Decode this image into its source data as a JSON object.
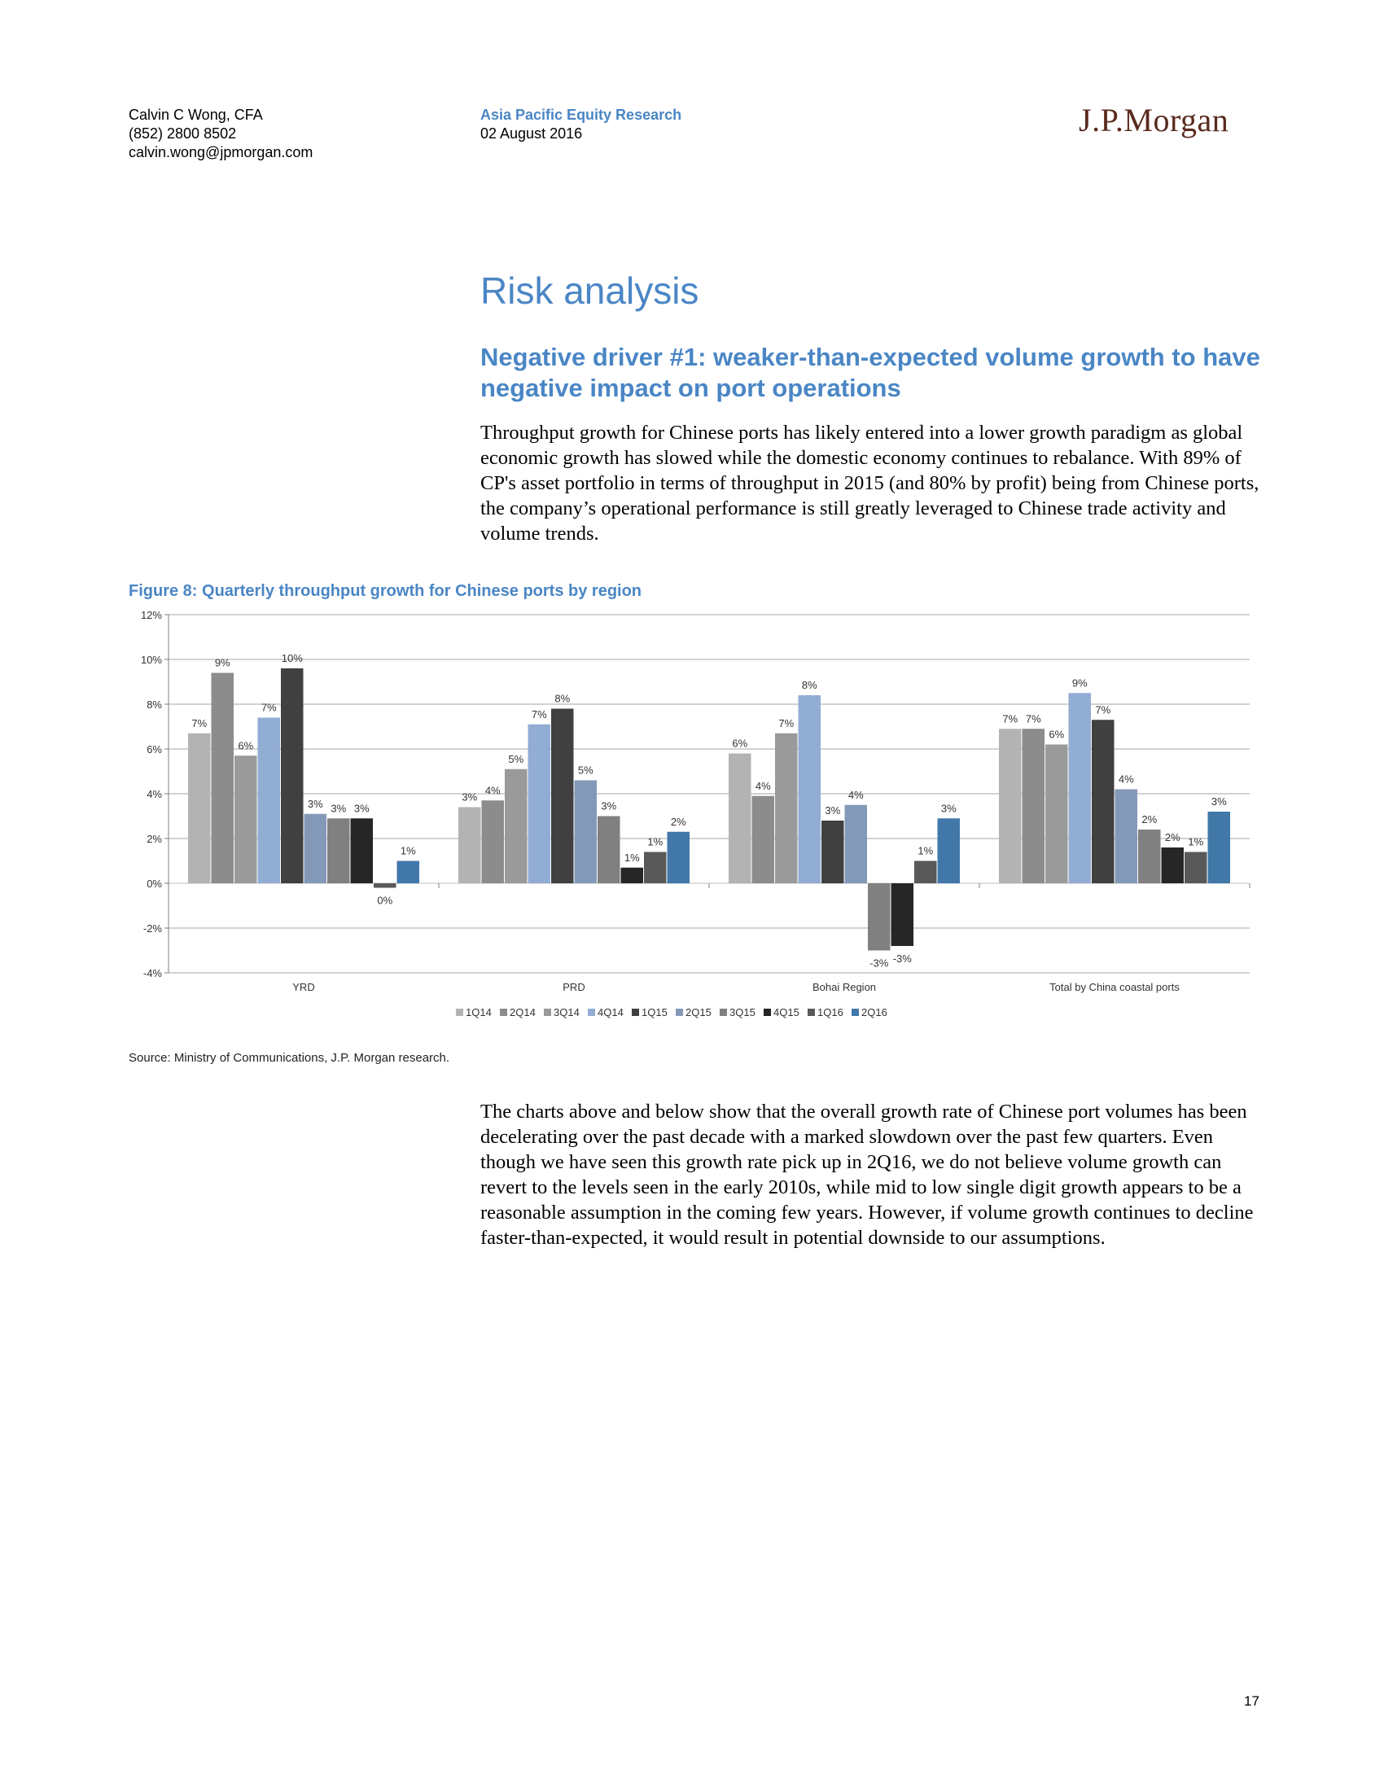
{
  "header": {
    "author_name": "Calvin C Wong, CFA",
    "author_phone": "(852) 2800 8502",
    "author_email": "calvin.wong@jpmorgan.com",
    "publication": "Asia Pacific Equity Research",
    "date": "02 August 2016",
    "logo_text": "J.P.Morgan"
  },
  "section_title": "Risk analysis",
  "subsection_title": "Negative driver #1: weaker-than-expected volume growth to have negative impact on port operations",
  "paragraph_1": "Throughput growth for Chinese ports has likely entered into a lower growth paradigm as global economic growth has slowed while the domestic economy continues to rebalance. With 89% of CP's asset portfolio in terms of throughput in 2015 (and 80% by profit) being from Chinese ports, the company’s operational performance is still greatly leveraged to Chinese trade activity and volume trends.",
  "figure_title": "Figure 8: Quarterly throughput growth for Chinese ports by region",
  "chart_data": {
    "type": "bar",
    "categories": [
      "YRD",
      "PRD",
      "Bohai Region",
      "Total by China coastal ports"
    ],
    "ylim": [
      -4,
      12
    ],
    "yticks": [
      -4,
      -2,
      0,
      2,
      4,
      6,
      8,
      10,
      12
    ],
    "ytick_labels": [
      "-4%",
      "-2%",
      "0%",
      "2%",
      "4%",
      "6%",
      "8%",
      "10%",
      "12%"
    ],
    "grid": true,
    "legend_position": "bottom",
    "series": [
      {
        "name": "1Q14",
        "color": "#b3b3b3",
        "values": [
          6.7,
          3.4,
          5.8,
          6.9
        ],
        "labels": [
          "7%",
          "3%",
          "6%",
          "7%"
        ]
      },
      {
        "name": "2Q14",
        "color": "#8c8c8c",
        "values": [
          9.4,
          3.7,
          3.9,
          6.9
        ],
        "labels": [
          "9%",
          "4%",
          "4%",
          "7%"
        ]
      },
      {
        "name": "3Q14",
        "color": "#9a9a9a",
        "values": [
          5.7,
          5.1,
          6.7,
          6.2
        ],
        "labels": [
          "6%",
          "5%",
          "7%",
          "6%"
        ]
      },
      {
        "name": "4Q14",
        "color": "#92add3",
        "values": [
          7.4,
          7.1,
          8.4,
          8.5
        ],
        "labels": [
          "7%",
          "7%",
          "8%",
          "9%"
        ]
      },
      {
        "name": "1Q15",
        "color": "#404040",
        "values": [
          9.6,
          7.8,
          2.8,
          7.3
        ],
        "labels": [
          "10%",
          "8%",
          "3%",
          "7%"
        ]
      },
      {
        "name": "2Q15",
        "color": "#8499b8",
        "values": [
          3.1,
          4.6,
          3.5,
          4.2
        ],
        "labels": [
          "3%",
          "5%",
          "4%",
          "4%"
        ]
      },
      {
        "name": "3Q15",
        "color": "#808080",
        "values": [
          2.9,
          3.0,
          -3.0,
          2.4
        ],
        "labels": [
          "3%",
          "3%",
          "-3%",
          "2%"
        ]
      },
      {
        "name": "4Q15",
        "color": "#262626",
        "values": [
          2.9,
          0.7,
          -2.8,
          1.6
        ],
        "labels": [
          "3%",
          "1%",
          "-3%",
          "2%"
        ]
      },
      {
        "name": "1Q16",
        "color": "#595959",
        "values": [
          -0.2,
          1.4,
          1.0,
          1.4
        ],
        "labels": [
          "0%",
          "1%",
          "1%",
          "1%"
        ]
      },
      {
        "name": "2Q16",
        "color": "#4178a8",
        "values": [
          1.0,
          2.3,
          2.9,
          3.2
        ],
        "labels": [
          "1%",
          "2%",
          "3%",
          "3%"
        ]
      }
    ]
  },
  "source_note": "Source: Ministry of Communications, J.P. Morgan research.",
  "paragraph_2": "The charts above and below show that the overall growth rate of Chinese port volumes has been decelerating over the past decade with a marked slowdown over the past few quarters. Even though we have seen this growth rate pick up in 2Q16, we do not believe volume growth can revert to the levels seen in the early 2010s, while mid to low single digit growth appears to be a reasonable assumption in the coming few years. However, if volume growth continues to decline faster-than-expected, it would result in potential downside to our assumptions.",
  "page_number": "17"
}
